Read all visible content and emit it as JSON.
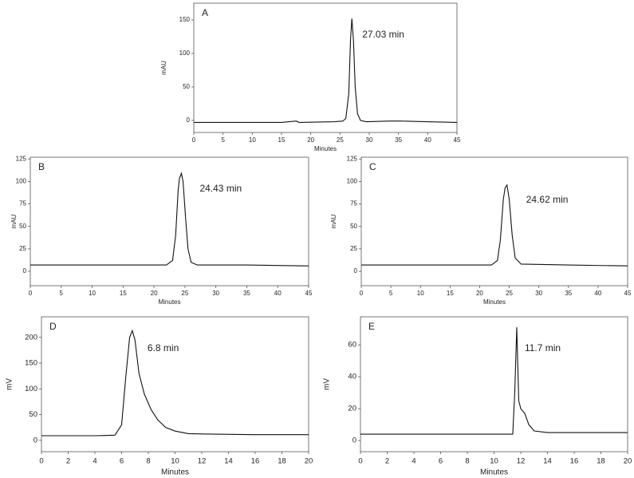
{
  "chart_data": [
    {
      "type": "line",
      "label": "A",
      "annotation": "27.03 min",
      "xlabel": "Minutes",
      "ylabel": "mAU",
      "color": "#111111",
      "xlim": [
        0,
        45
      ],
      "xticks": [
        0,
        5,
        10,
        15,
        20,
        25,
        30,
        35,
        40,
        45
      ],
      "ylim": [
        -18,
        175
      ],
      "yticks": [
        0,
        50,
        100,
        150
      ],
      "x": [
        0,
        5,
        10,
        15,
        17.5,
        18,
        24,
        25.5,
        26,
        26.5,
        26.8,
        27.03,
        27.3,
        27.6,
        28,
        28.5,
        29.5,
        33.5,
        35.5,
        40,
        45
      ],
      "values": [
        -3,
        -3,
        -3,
        -3,
        -1,
        -3,
        -2,
        -1,
        3,
        40,
        120,
        152,
        120,
        50,
        10,
        0,
        -2,
        -1,
        -1,
        -2,
        -3
      ]
    },
    {
      "type": "line",
      "label": "B",
      "annotation": "24.43 min",
      "xlabel": "Minutes",
      "ylabel": "mAU",
      "color": "#111111",
      "xlim": [
        0,
        45
      ],
      "xticks": [
        0,
        5,
        10,
        15,
        20,
        25,
        30,
        35,
        40,
        45
      ],
      "ylim": [
        -16,
        127
      ],
      "yticks": [
        0,
        25,
        50,
        75,
        100,
        125
      ],
      "x": [
        0,
        10,
        20,
        22,
        23,
        23.5,
        23.9,
        24.1,
        24.43,
        24.7,
        25.1,
        25.5,
        26,
        27,
        35,
        45
      ],
      "values": [
        7,
        7,
        7,
        7,
        12,
        40,
        90,
        103,
        109,
        100,
        60,
        25,
        10,
        7,
        7,
        6
      ]
    },
    {
      "type": "line",
      "label": "C",
      "annotation": "24.62 min",
      "xlabel": "Minutes",
      "ylabel": "mAU",
      "color": "#111111",
      "xlim": [
        0,
        45
      ],
      "xticks": [
        0,
        5,
        10,
        15,
        20,
        25,
        30,
        35,
        40,
        45
      ],
      "ylim": [
        -16,
        127
      ],
      "yticks": [
        0,
        25,
        50,
        75,
        100,
        125
      ],
      "x": [
        0,
        20,
        22,
        23,
        23.5,
        24,
        24.3,
        24.62,
        25,
        25.5,
        26,
        27,
        35,
        45
      ],
      "values": [
        7,
        7,
        7,
        12,
        35,
        80,
        93,
        96,
        80,
        40,
        15,
        8,
        7,
        6
      ]
    },
    {
      "type": "line",
      "label": "D",
      "annotation": "6.8 min",
      "xlabel": "Minutes",
      "ylabel": "mV",
      "color": "#111111",
      "xlim": [
        0,
        20
      ],
      "xticks": [
        0,
        2,
        4,
        6,
        8,
        10,
        12,
        14,
        16,
        18,
        20
      ],
      "ylim": [
        -22,
        240
      ],
      "yticks": [
        0,
        50,
        100,
        150,
        200
      ],
      "x": [
        0,
        2,
        4,
        5.5,
        6,
        6.3,
        6.6,
        6.8,
        7,
        7.3,
        7.7,
        8.2,
        8.7,
        9.3,
        10,
        11,
        13,
        16,
        20
      ],
      "values": [
        9,
        9,
        9,
        10,
        30,
        120,
        200,
        213,
        195,
        130,
        90,
        60,
        40,
        25,
        18,
        13,
        12,
        11,
        11
      ]
    },
    {
      "type": "line",
      "label": "E",
      "annotation": "11.7 min",
      "xlabel": "Minutes",
      "ylabel": "mV",
      "color": "#111111",
      "xlim": [
        0,
        20
      ],
      "xticks": [
        0,
        2,
        4,
        6,
        8,
        10,
        12,
        14,
        16,
        18,
        20
      ],
      "ylim": [
        -7,
        77.6
      ],
      "yticks": [
        0,
        20,
        40,
        60
      ],
      "x": [
        0,
        4,
        8,
        11.4,
        11.55,
        11.7,
        11.85,
        12,
        12.3,
        12.6,
        13,
        14,
        17,
        20
      ],
      "values": [
        4,
        4,
        4,
        4,
        30,
        71,
        25,
        20,
        17,
        10,
        6,
        5,
        5,
        5
      ]
    }
  ]
}
